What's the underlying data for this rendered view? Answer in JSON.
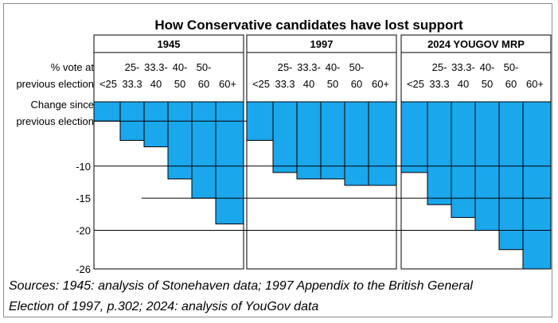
{
  "chart_data": {
    "type": "bar",
    "title": "How  Conservative candidates have lost support",
    "row_label_lines": [
      "% vote at",
      "previous election"
    ],
    "ylabel_lines": [
      "Change since",
      "previous election"
    ],
    "ytick_values": [
      -10,
      -15,
      -20,
      -26
    ],
    "ytick_labels": [
      "-10",
      "-15",
      "-20",
      "-26"
    ],
    "ylim": [
      -26,
      0
    ],
    "categories": [
      "<25",
      "25-33.3",
      "33.3-40",
      "40-50",
      "50-60",
      "60+"
    ],
    "category_label_lines": [
      [
        "",
        "<25"
      ],
      [
        "25-",
        "33.3"
      ],
      [
        "33.3-",
        "40"
      ],
      [
        "40-",
        "50"
      ],
      [
        "50-",
        "60"
      ],
      [
        "",
        "60+"
      ]
    ],
    "series": [
      {
        "name": "1945",
        "values": [
          -3,
          -6,
          -7,
          -12,
          -15,
          -19
        ]
      },
      {
        "name": "1997",
        "values": [
          -6,
          -11,
          -12,
          -12,
          -13,
          -13
        ]
      },
      {
        "name": "2024 YOUGOV MRP",
        "values": [
          -11,
          -16,
          -18,
          -20,
          -23,
          -26
        ]
      }
    ],
    "bar_color": "#1aa7ec",
    "gridlines": [
      -3,
      -10,
      -15,
      -20
    ]
  },
  "sources": {
    "line1": "Sources:  1945: analysis of Stonehaven data; 1997 Appendix to the British General",
    "line2": "Election of 1997, p.302; 2024: analysis of YouGov data"
  }
}
